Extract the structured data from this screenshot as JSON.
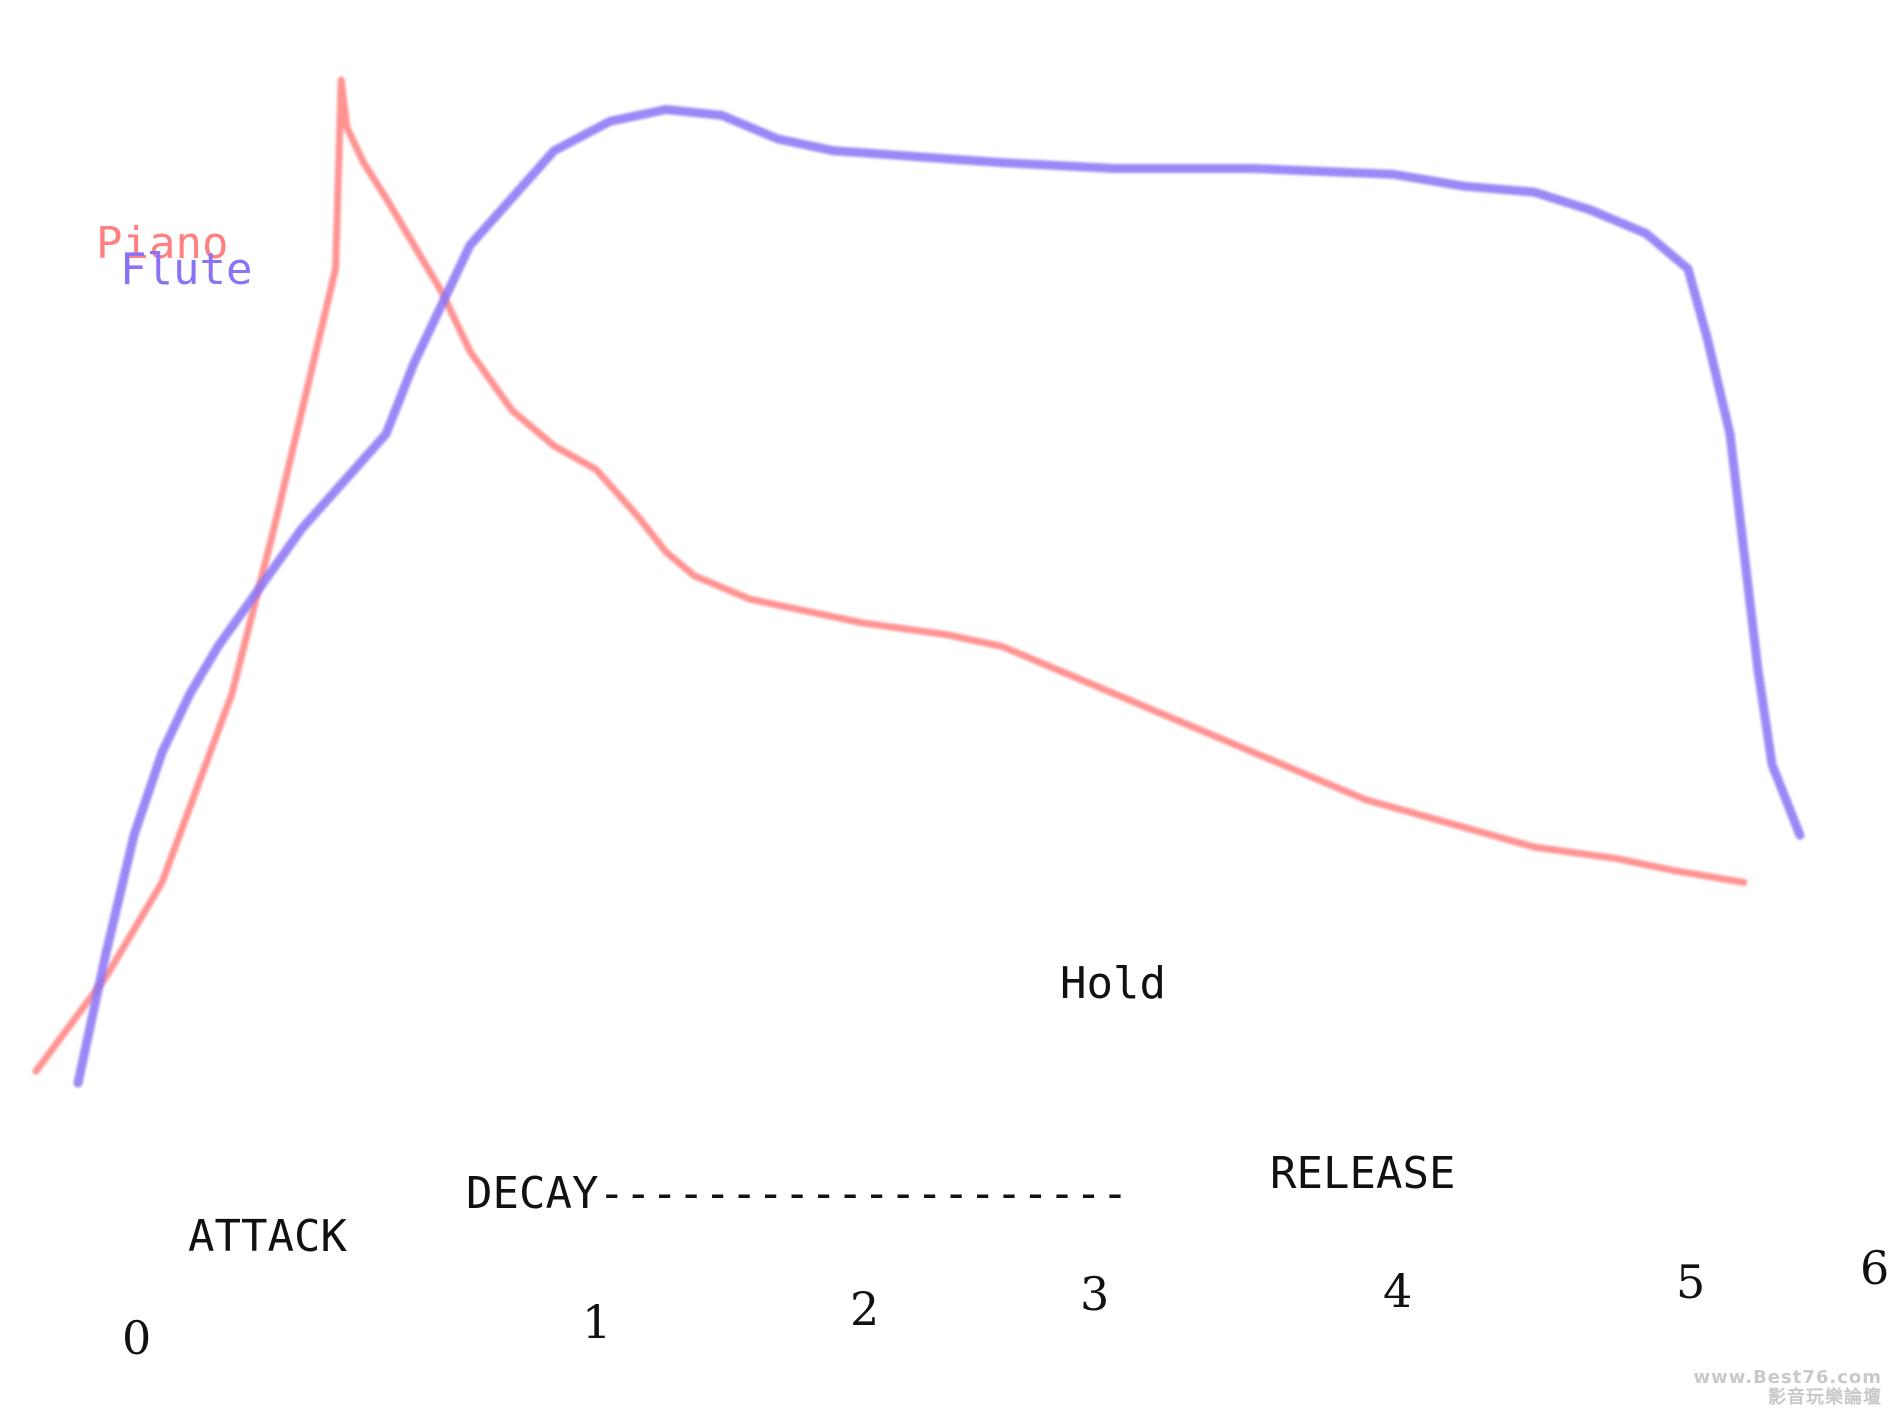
{
  "chart_data": {
    "type": "line",
    "title": "",
    "xlabel": "",
    "ylabel": "",
    "xlim": [
      -0.45,
      6.1
    ],
    "ylim": [
      0,
      100
    ],
    "x_ticks": [
      "0",
      "1",
      "2",
      "3",
      "4",
      "5",
      "6"
    ],
    "grid": false,
    "legend": "top-left",
    "series": [
      {
        "name": "Piano",
        "color": "#ff8080",
        "points": [
          [
            -0.35,
            16
          ],
          [
            -0.1,
            24
          ],
          [
            0.1,
            32
          ],
          [
            0.35,
            48
          ],
          [
            0.5,
            62
          ],
          [
            0.6,
            72
          ],
          [
            0.68,
            80
          ],
          [
            0.72,
            84
          ],
          [
            0.74,
            100
          ],
          [
            0.76,
            96
          ],
          [
            0.82,
            93
          ],
          [
            0.9,
            90
          ],
          [
            1.0,
            86
          ],
          [
            1.1,
            82
          ],
          [
            1.2,
            77
          ],
          [
            1.35,
            72
          ],
          [
            1.5,
            69
          ],
          [
            1.65,
            67
          ],
          [
            1.8,
            63
          ],
          [
            1.9,
            60
          ],
          [
            2.0,
            58
          ],
          [
            2.2,
            56
          ],
          [
            2.4,
            55
          ],
          [
            2.6,
            54
          ],
          [
            2.9,
            53
          ],
          [
            3.1,
            52
          ],
          [
            3.3,
            50
          ],
          [
            3.5,
            48
          ],
          [
            3.8,
            45
          ],
          [
            4.1,
            42
          ],
          [
            4.4,
            39
          ],
          [
            4.7,
            37
          ],
          [
            5.0,
            35
          ],
          [
            5.3,
            34
          ],
          [
            5.5,
            33
          ],
          [
            5.75,
            32
          ]
        ]
      },
      {
        "name": "Flute",
        "color": "#8a73f5",
        "points": [
          [
            -0.2,
            15
          ],
          [
            -0.1,
            26
          ],
          [
            0.0,
            36
          ],
          [
            0.1,
            43
          ],
          [
            0.2,
            48
          ],
          [
            0.3,
            52
          ],
          [
            0.45,
            57
          ],
          [
            0.6,
            62
          ],
          [
            0.75,
            66
          ],
          [
            0.9,
            70
          ],
          [
            1.0,
            76
          ],
          [
            1.1,
            81
          ],
          [
            1.2,
            86
          ],
          [
            1.35,
            90
          ],
          [
            1.5,
            94
          ],
          [
            1.7,
            96.5
          ],
          [
            1.9,
            97.5
          ],
          [
            2.1,
            97
          ],
          [
            2.3,
            95
          ],
          [
            2.5,
            94
          ],
          [
            2.8,
            93.5
          ],
          [
            3.1,
            93
          ],
          [
            3.5,
            92.5
          ],
          [
            4.0,
            92.5
          ],
          [
            4.5,
            92
          ],
          [
            4.75,
            91
          ],
          [
            5.0,
            90.5
          ],
          [
            5.2,
            89
          ],
          [
            5.4,
            87
          ],
          [
            5.55,
            84
          ],
          [
            5.62,
            78
          ],
          [
            5.7,
            70
          ],
          [
            5.75,
            60
          ],
          [
            5.8,
            50
          ],
          [
            5.85,
            42
          ],
          [
            5.95,
            36
          ]
        ]
      }
    ],
    "annotations": [
      {
        "text": "ATTACK",
        "x": 0.0,
        "y": 21
      },
      {
        "text": "DECAY--------------------",
        "x": 1.1,
        "y": 26
      },
      {
        "text": "Hold",
        "x": 2.8,
        "y": 43
      },
      {
        "text": "RELEASE",
        "x": 3.9,
        "y": 30
      }
    ]
  },
  "watermark": {
    "line1": "www.Best76.com",
    "line2": "影音玩樂論壇"
  }
}
